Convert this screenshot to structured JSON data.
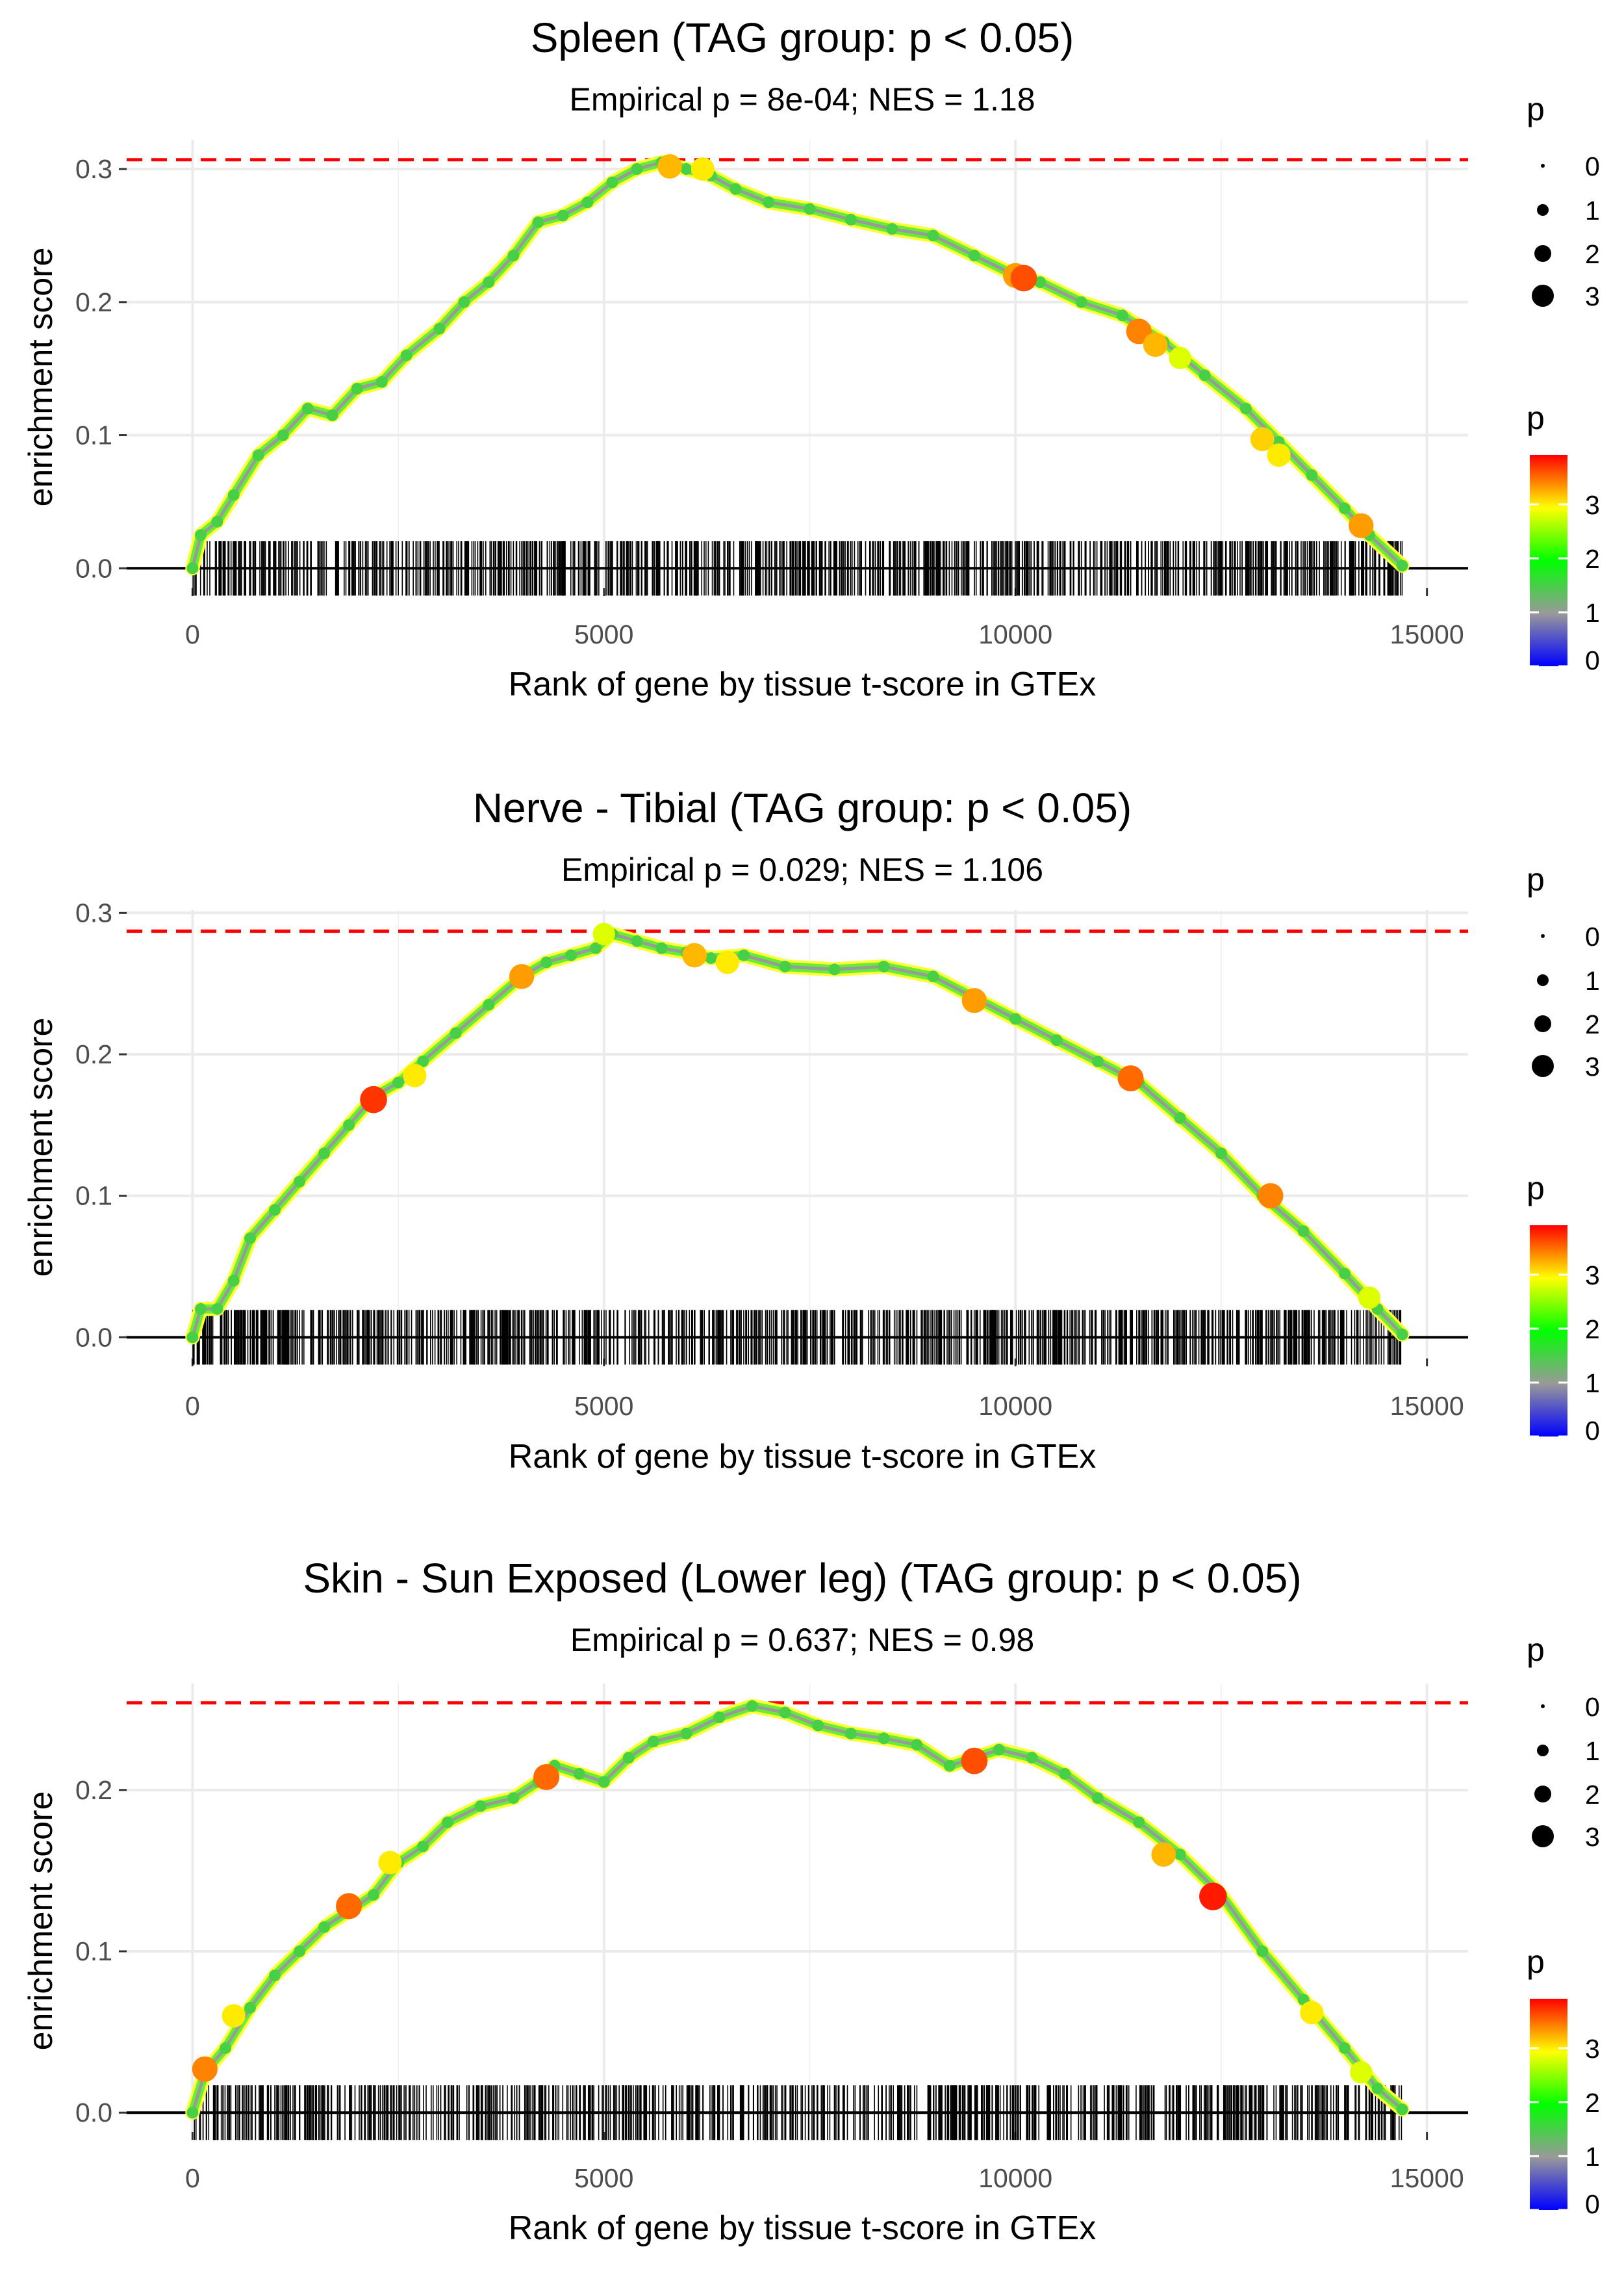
{
  "chart_data": [
    {
      "type": "line",
      "title": "Spleen (TAG group: p < 0.05)",
      "subtitle": "Empirical p = 8e-04; NES = 1.18",
      "xlabel": "Rank of gene by tissue t-score in GTEx",
      "ylabel": "enrichment score",
      "xlim": [
        -800,
        15500
      ],
      "ylim": [
        -0.015,
        0.322
      ],
      "x_ticks": [
        0,
        5000,
        10000,
        15000
      ],
      "y_ticks": [
        0.0,
        0.1,
        0.2,
        0.3
      ],
      "max_es": 0.307,
      "max_es_line_color": "#ff0000",
      "x": [
        0,
        100,
        300,
        500,
        800,
        1100,
        1400,
        1700,
        2000,
        2300,
        2600,
        3000,
        3300,
        3600,
        3900,
        4200,
        4500,
        4800,
        5100,
        5400,
        5700,
        6000,
        6300,
        6600,
        7000,
        7500,
        8000,
        8500,
        9000,
        9500,
        10000,
        10300,
        10800,
        11300,
        11800,
        12300,
        12800,
        13200,
        13600,
        14000,
        14300,
        14700
      ],
      "y": [
        0,
        0.025,
        0.035,
        0.055,
        0.085,
        0.1,
        0.12,
        0.115,
        0.135,
        0.14,
        0.16,
        0.18,
        0.2,
        0.215,
        0.235,
        0.26,
        0.265,
        0.275,
        0.29,
        0.3,
        0.305,
        0.3,
        0.295,
        0.285,
        0.275,
        0.27,
        0.262,
        0.255,
        0.25,
        0.235,
        0.22,
        0.215,
        0.2,
        0.19,
        0.17,
        0.145,
        0.12,
        0.095,
        0.07,
        0.045,
        0.025,
        0.002
      ],
      "highlight_points": [
        [
          5800,
          0.302,
          3.2
        ],
        [
          6200,
          0.3,
          3.0
        ],
        [
          10000,
          0.22,
          3.3
        ],
        [
          10100,
          0.218,
          3.6
        ],
        [
          11500,
          0.178,
          3.4
        ],
        [
          11700,
          0.168,
          3.2
        ],
        [
          12000,
          0.158,
          2.8
        ],
        [
          13000,
          0.097,
          3.1
        ],
        [
          13200,
          0.085,
          3.0
        ],
        [
          14200,
          0.032,
          3.3
        ]
      ],
      "point_color_default": 1.5,
      "gene_ranks_seed": 11,
      "gene_ranks_count": 950,
      "gene_ranks_max": 14700
    },
    {
      "type": "line",
      "title": "Nerve - Tibial (TAG group: p < 0.05)",
      "subtitle": "Empirical p = 0.029; NES = 1.106",
      "xlabel": "Rank of gene by tissue t-score in GTEx",
      "ylabel": "enrichment score",
      "xlim": [
        -800,
        15500
      ],
      "ylim": [
        -0.015,
        0.302
      ],
      "x_ticks": [
        0,
        5000,
        10000,
        15000
      ],
      "y_ticks": [
        0.0,
        0.1,
        0.2,
        0.3
      ],
      "max_es": 0.287,
      "max_es_line_color": "#ff0000",
      "x": [
        0,
        100,
        300,
        500,
        700,
        1000,
        1300,
        1600,
        1900,
        2200,
        2500,
        2800,
        3200,
        3600,
        4000,
        4300,
        4600,
        4900,
        5100,
        5400,
        5700,
        6000,
        6300,
        6700,
        7200,
        7800,
        8400,
        9000,
        9500,
        10000,
        10500,
        11000,
        11500,
        12000,
        12500,
        13000,
        13500,
        14000,
        14400,
        14700
      ],
      "y": [
        0,
        0.02,
        0.02,
        0.04,
        0.07,
        0.09,
        0.11,
        0.13,
        0.15,
        0.17,
        0.18,
        0.195,
        0.215,
        0.235,
        0.255,
        0.265,
        0.27,
        0.275,
        0.285,
        0.28,
        0.275,
        0.272,
        0.268,
        0.27,
        0.262,
        0.26,
        0.262,
        0.255,
        0.24,
        0.225,
        0.21,
        0.195,
        0.18,
        0.155,
        0.13,
        0.1,
        0.075,
        0.045,
        0.02,
        0.002
      ],
      "highlight_points": [
        [
          2200,
          0.168,
          3.7
        ],
        [
          2700,
          0.185,
          3.0
        ],
        [
          4000,
          0.255,
          3.3
        ],
        [
          5000,
          0.285,
          2.8
        ],
        [
          6100,
          0.27,
          3.2
        ],
        [
          6500,
          0.265,
          3.0
        ],
        [
          9500,
          0.238,
          3.3
        ],
        [
          11400,
          0.183,
          3.5
        ],
        [
          13100,
          0.1,
          3.4
        ],
        [
          14300,
          0.028,
          2.8
        ]
      ],
      "point_color_default": 1.5,
      "gene_ranks_seed": 23,
      "gene_ranks_count": 1000,
      "gene_ranks_max": 14700
    },
    {
      "type": "line",
      "title": "Skin - Sun Exposed (Lower leg) (TAG group: p < 0.05)",
      "subtitle": "Empirical p = 0.637; NES = 0.98",
      "xlabel": "Rank of gene by tissue t-score in GTEx",
      "ylabel": "enrichment score",
      "xlim": [
        -800,
        15500
      ],
      "ylim": [
        -0.012,
        0.266
      ],
      "x_ticks": [
        0,
        5000,
        10000,
        15000
      ],
      "y_ticks": [
        0.0,
        0.1,
        0.2
      ],
      "max_es": 0.254,
      "max_es_line_color": "#ff0000",
      "x": [
        0,
        150,
        400,
        700,
        1000,
        1300,
        1600,
        1900,
        2200,
        2500,
        2800,
        3100,
        3500,
        3900,
        4200,
        4400,
        4700,
        5000,
        5300,
        5600,
        6000,
        6400,
        6800,
        7200,
        7600,
        8000,
        8400,
        8800,
        9200,
        9500,
        9800,
        10200,
        10600,
        11000,
        11500,
        12000,
        12500,
        13000,
        13500,
        14000,
        14400,
        14700
      ],
      "y": [
        0,
        0.025,
        0.04,
        0.065,
        0.085,
        0.1,
        0.115,
        0.125,
        0.135,
        0.155,
        0.165,
        0.18,
        0.19,
        0.195,
        0.205,
        0.215,
        0.21,
        0.205,
        0.22,
        0.23,
        0.235,
        0.245,
        0.252,
        0.248,
        0.24,
        0.235,
        0.232,
        0.228,
        0.215,
        0.22,
        0.225,
        0.22,
        0.21,
        0.195,
        0.18,
        0.16,
        0.135,
        0.1,
        0.07,
        0.04,
        0.015,
        0.002
      ],
      "highlight_points": [
        [
          150,
          0.027,
          3.4
        ],
        [
          500,
          0.06,
          3.0
        ],
        [
          1900,
          0.128,
          3.5
        ],
        [
          2400,
          0.155,
          3.0
        ],
        [
          4300,
          0.208,
          3.5
        ],
        [
          9500,
          0.218,
          3.6
        ],
        [
          11800,
          0.16,
          3.2
        ],
        [
          12400,
          0.134,
          3.8
        ],
        [
          13600,
          0.062,
          3.0
        ],
        [
          14200,
          0.025,
          2.8
        ]
      ],
      "point_color_default": 1.5,
      "gene_ranks_seed": 37,
      "gene_ranks_count": 850,
      "gene_ranks_max": 14700
    }
  ],
  "legend": {
    "size_title": "p",
    "size_levels": [
      "0",
      "1",
      "2",
      "3"
    ],
    "color_title": "p",
    "color_ticks": [
      "0",
      "1",
      "2",
      "3"
    ],
    "color_range": [
      0,
      3.9
    ],
    "colors": [
      "#0000ff",
      "#999999",
      "#00ff00",
      "#ffff00",
      "#ff0000"
    ]
  }
}
